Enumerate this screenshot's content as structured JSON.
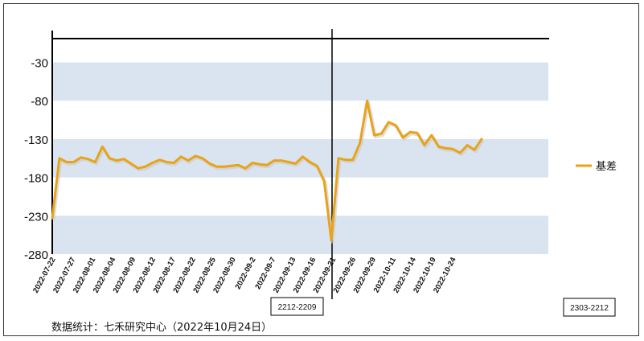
{
  "footer": "数据统计：七禾研究中心（2022年10月24日）",
  "annotations": {
    "split_label": "2212-2209",
    "contract_label": "2303-2212"
  },
  "colors": {
    "line": "#e8a317",
    "band": "#d9e4f0",
    "axis": "#000000"
  },
  "chart_data": {
    "type": "line",
    "title": "",
    "xlabel": "",
    "ylabel": "",
    "ylim": [
      -280,
      20
    ],
    "yticks": [
      -30,
      -80,
      -130,
      -180,
      -230,
      -280
    ],
    "bands": [
      [
        -80,
        -30
      ],
      [
        -180,
        -130
      ],
      [
        -280,
        -230
      ]
    ],
    "xticks": [
      "2022-07-22",
      "2022-07-27",
      "2022-08-01",
      "2022-08-04",
      "2022-08-09",
      "2022-08-12",
      "2022-08-17",
      "2022-08-22",
      "2022-08-25",
      "2022-08-30",
      "2022-09-2",
      "2022-09-7",
      "2022-09-13",
      "2022-09-16",
      "2022-09-21",
      "2022-09-26",
      "2022-09-29",
      "2022-10-11",
      "2022-10-14",
      "2022-10-19",
      "2022-10-24"
    ],
    "legend": {
      "position": "right"
    },
    "series": [
      {
        "name": "基差",
        "values": [
          -233,
          -155,
          -160,
          -160,
          -154,
          -156,
          -160,
          -140,
          -155,
          -158,
          -156,
          -162,
          -168,
          -166,
          -161,
          -157,
          -160,
          -161,
          -153,
          -158,
          -152,
          -155,
          -162,
          -166,
          -166,
          -165,
          -164,
          -168,
          -161,
          -163,
          -164,
          -158,
          -158,
          -160,
          -162,
          -153,
          -160,
          -165,
          -185,
          -262,
          -155,
          -157,
          -157,
          -135,
          -80,
          -125,
          -123,
          -108,
          -112,
          -128,
          -121,
          -122,
          -138,
          -125,
          -140,
          -142,
          -143,
          -148,
          -138,
          -144,
          -130
        ]
      }
    ]
  }
}
